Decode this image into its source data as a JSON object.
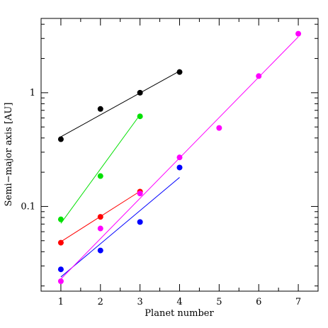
{
  "chart_data": {
    "type": "scatter",
    "title": "",
    "xlabel": "Planet number",
    "ylabel": "Semi−major axis [AU]",
    "xlim": [
      0.5,
      7.5
    ],
    "ylim": [
      0.018,
      4.5
    ],
    "yscale": "log",
    "x_ticks": [
      1,
      2,
      3,
      4,
      5,
      6,
      7
    ],
    "x_tick_labels": [
      "1",
      "2",
      "3",
      "4",
      "5",
      "6",
      "7"
    ],
    "y_ticks": [
      0.1,
      1
    ],
    "y_tick_labels": [
      "0.1",
      "1"
    ],
    "grid": false,
    "legend": "none",
    "series": [
      {
        "color": "#000000",
        "x": [
          1,
          2,
          3,
          4
        ],
        "y": [
          0.39,
          0.72,
          1.0,
          1.52
        ],
        "fit": {
          "x": [
            1,
            4
          ],
          "y": [
            0.41,
            1.55
          ]
        }
      },
      {
        "color": "#00e000",
        "x": [
          1,
          2,
          3
        ],
        "y": [
          0.077,
          0.185,
          0.62
        ],
        "fit": {
          "x": [
            1,
            3
          ],
          "y": [
            0.071,
            0.64
          ]
        }
      },
      {
        "color": "#ff0000",
        "x": [
          1,
          2,
          3
        ],
        "y": [
          0.048,
          0.081,
          0.135
        ],
        "fit": {
          "x": [
            1,
            3
          ],
          "y": [
            0.049,
            0.136
          ]
        }
      },
      {
        "color": "#0000ff",
        "x": [
          1,
          2,
          3,
          4
        ],
        "y": [
          0.028,
          0.041,
          0.073,
          0.22
        ],
        "fit": {
          "x": [
            1,
            4
          ],
          "y": [
            0.024,
            0.18
          ]
        }
      },
      {
        "color": "#ff00ff",
        "x": [
          1,
          2,
          3,
          4,
          5,
          6,
          7
        ],
        "y": [
          0.022,
          0.064,
          0.13,
          0.27,
          0.49,
          1.4,
          3.3
        ],
        "fit": {
          "x": [
            1,
            7
          ],
          "y": [
            0.023,
            3.1
          ]
        }
      }
    ]
  }
}
